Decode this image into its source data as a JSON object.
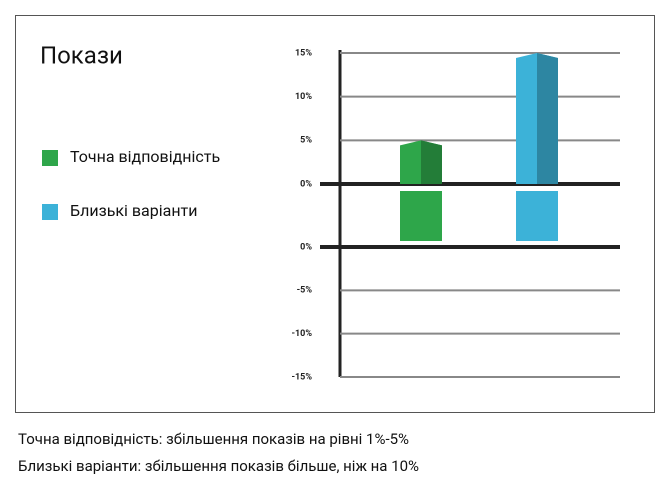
{
  "chart_data": {
    "type": "bar",
    "title": "Покази",
    "categories": [
      null
    ],
    "series": [
      {
        "name": "Точна відповідність",
        "color": "#2ea64a",
        "values": [
          5
        ]
      },
      {
        "name": "Близькі варіанти",
        "color": "#3cb2d8",
        "values": [
          15
        ]
      }
    ],
    "ylim": [
      0,
      15
    ],
    "yticks": [
      {
        "value": 0,
        "label": "0%"
      },
      {
        "value": 5,
        "label": "5%"
      },
      {
        "value": 10,
        "label": "10%"
      },
      {
        "value": 15,
        "label": "15%"
      }
    ],
    "y2lim": [
      -15,
      0
    ],
    "y2ticks": [
      {
        "value": 0,
        "label": "0%"
      },
      {
        "value": -5,
        "label": "-5%"
      },
      {
        "value": -10,
        "label": "-10%"
      },
      {
        "value": -15,
        "label": "-15%"
      }
    ],
    "grid": true,
    "notes": [
      "Точна відповідність: збільшення показів на рівні 1%-5%",
      "Близькі варіанти: збільшення показів більше, ніж на 10%"
    ]
  }
}
